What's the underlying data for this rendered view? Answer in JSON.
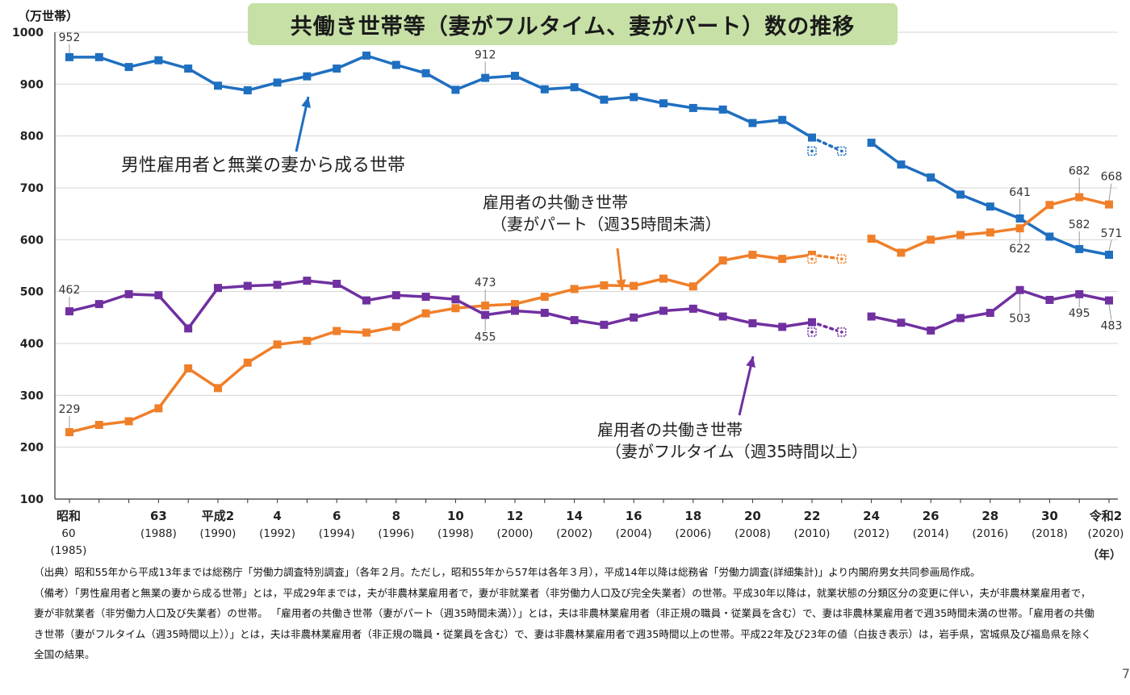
{
  "chart_data": {
    "type": "line",
    "title": "共働き世帯等（妻がフルタイム、妻がパート）数の推移",
    "ylabel": "（万世帯）",
    "xlabel": "（年）",
    "ylim": [
      100,
      1000
    ],
    "yticks": [
      "100",
      "200",
      "300",
      "400",
      "500",
      "600",
      "700",
      "800",
      "900",
      "1000"
    ],
    "x_years": [
      1985,
      1986,
      1987,
      1988,
      1989,
      1990,
      1991,
      1992,
      1993,
      1994,
      1995,
      1996,
      1997,
      1998,
      1999,
      2000,
      2001,
      2002,
      2003,
      2004,
      2005,
      2006,
      2007,
      2008,
      2009,
      2010,
      2011,
      2012,
      2013,
      2014,
      2015,
      2016,
      2017,
      2018,
      2019,
      2020
    ],
    "x_tick_labels": [
      {
        "year": 1985,
        "lines": [
          "昭和",
          "60",
          "(1985)"
        ]
      },
      {
        "year": 1988,
        "lines": [
          "63",
          "(1988)"
        ]
      },
      {
        "year": 1990,
        "lines": [
          "平成2",
          "(1990)"
        ]
      },
      {
        "year": 1992,
        "lines": [
          "4",
          "(1992)"
        ]
      },
      {
        "year": 1994,
        "lines": [
          "6",
          "(1994)"
        ]
      },
      {
        "year": 1996,
        "lines": [
          "8",
          "(1996)"
        ]
      },
      {
        "year": 1998,
        "lines": [
          "10",
          "(1998)"
        ]
      },
      {
        "year": 2000,
        "lines": [
          "12",
          "(2000)"
        ]
      },
      {
        "year": 2002,
        "lines": [
          "14",
          "(2002)"
        ]
      },
      {
        "year": 2004,
        "lines": [
          "16",
          "(2004)"
        ]
      },
      {
        "year": 2006,
        "lines": [
          "18",
          "(2006)"
        ]
      },
      {
        "year": 2008,
        "lines": [
          "20",
          "(2008)"
        ]
      },
      {
        "year": 2010,
        "lines": [
          "22",
          "(2010)"
        ]
      },
      {
        "year": 2012,
        "lines": [
          "24",
          "(2012)"
        ]
      },
      {
        "year": 2014,
        "lines": [
          "26",
          "(2014)"
        ]
      },
      {
        "year": 2016,
        "lines": [
          "28",
          "(2016)"
        ]
      },
      {
        "year": 2018,
        "lines": [
          "30",
          "(2018)"
        ]
      },
      {
        "year": 2020,
        "lines": [
          "令和2",
          "(2020)"
        ]
      }
    ],
    "series": [
      {
        "name": "男性雇用者と無業の妻から成る世帯",
        "color": "#1f6fc0",
        "values": [
          952,
          952,
          933,
          946,
          930,
          897,
          888,
          903,
          915,
          930,
          955,
          937,
          921,
          889,
          912,
          916,
          890,
          894,
          870,
          875,
          863,
          854,
          851,
          825,
          831,
          797,
          771,
          787,
          745,
          720,
          687,
          664,
          641,
          606,
          582,
          571
        ]
      },
      {
        "name": "雇用者の共働き世帯（妻がパート（週35時間未満）",
        "color": "#f07f2a",
        "values": [
          229,
          243,
          250,
          275,
          352,
          314,
          363,
          398,
          405,
          424,
          421,
          432,
          458,
          468,
          473,
          476,
          490,
          505,
          512,
          511,
          525,
          510,
          560,
          571,
          563,
          571,
          563,
          602,
          575,
          600,
          609,
          614,
          622,
          667,
          682,
          668
        ]
      },
      {
        "name": "雇用者の共働き世帯（妻がフルタイム（週35時間以上）",
        "color": "#7030a0",
        "values": [
          462,
          476,
          495,
          493,
          429,
          507,
          511,
          513,
          521,
          515,
          483,
          493,
          490,
          485,
          455,
          463,
          459,
          445,
          436,
          450,
          463,
          467,
          452,
          439,
          432,
          441,
          422,
          452,
          440,
          425,
          449,
          459,
          503,
          484,
          495,
          483
        ]
      }
    ],
    "data_labels": [
      {
        "series": 0,
        "year": 1985,
        "text": "952"
      },
      {
        "series": 0,
        "year": 1999,
        "text": "912"
      },
      {
        "series": 0,
        "year": 2017,
        "text": "641"
      },
      {
        "series": 0,
        "year": 2019,
        "text": "582"
      },
      {
        "series": 0,
        "year": 2020,
        "text": "571"
      },
      {
        "series": 1,
        "year": 1985,
        "text": "229"
      },
      {
        "series": 1,
        "year": 1999,
        "text": "473"
      },
      {
        "series": 1,
        "year": 2017,
        "text": "622"
      },
      {
        "series": 1,
        "year": 2019,
        "text": "682"
      },
      {
        "series": 1,
        "year": 2020,
        "text": "668"
      },
      {
        "series": 2,
        "year": 1985,
        "text": "462"
      },
      {
        "series": 2,
        "year": 1999,
        "text": "455"
      },
      {
        "series": 2,
        "year": 2017,
        "text": "503"
      },
      {
        "series": 2,
        "year": 2019,
        "text": "495"
      },
      {
        "series": 2,
        "year": 2020,
        "text": "483"
      }
    ],
    "annotations": [
      {
        "series": 0,
        "lines": [
          "男性雇用者と無業の妻から成る世帯"
        ]
      },
      {
        "series": 1,
        "lines": [
          "雇用者の共働き世帯",
          "（妻がパート（週35時間未満）"
        ]
      },
      {
        "series": 2,
        "lines": [
          "雇用者の共働き世帯",
          "（妻がフルタイム（週35時間以上）"
        ]
      }
    ],
    "grid": true,
    "hollow_years": [
      2010,
      2011
    ]
  },
  "header": {
    "title": "共働き世帯等（妻がフルタイム、妻がパート）数の推移",
    "unit": "（万世帯）"
  },
  "notes": {
    "source": "（出典）昭和55年から平成13年までは総務庁「労働力調査特別調査」（各年２月。ただし，昭和55年から57年は各年３月），平成14年以降は総務省「労働力調査(詳細集計)」より内閣府男女共同参画局作成。",
    "remarks": "（備考）「男性雇用者と無業の妻から成る世帯」とは，平成29年までは，夫が非農林業雇用者で，妻が非就業者（非労働力人口及び完全失業者）の世帯。平成30年以降は，就業状態の分類区分の変更に伴い，夫が非農林業雇用者で，妻が非就業者（非労働力人口及び失業者）の世帯。 「雇用者の共働き世帯（妻がパート（週35時間未満））」とは，夫は非農林業雇用者（非正規の職員・従業員を含む）で、妻は非農林業雇用者で週35時間未満の世帯。「雇用者の共働き世帯（妻がフルタイム（週35時間以上））」とは，夫は非農林業雇用者（非正規の職員・従業員を含む）で、妻は非農林業雇用者で週35時間以上の世帯。平成22年及び23年の値（白抜き表示）は，岩手県，宮城県及び福島県を除く全国の結果。"
  },
  "page_number": "7"
}
